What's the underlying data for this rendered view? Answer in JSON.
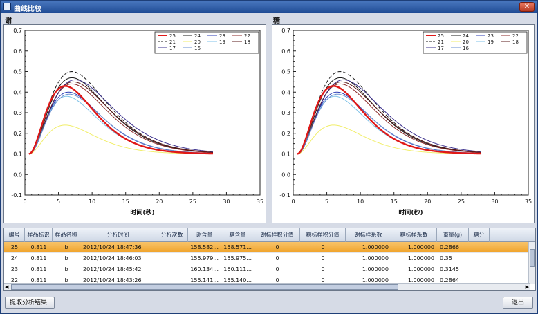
{
  "window": {
    "title": "曲线比较",
    "close_glyph": "✕"
  },
  "panels": [
    {
      "title": "谢"
    },
    {
      "title": "糖"
    }
  ],
  "chart_data": [
    {
      "type": "line",
      "title": "谢",
      "xlabel": "时间(秒)",
      "ylabel": "",
      "xlim": [
        0,
        35
      ],
      "ylim": [
        -0.1,
        0.7
      ],
      "xticks": [
        0,
        5,
        10,
        15,
        20,
        25,
        30,
        35
      ],
      "yticks": [
        -0.1,
        0.0,
        0.1,
        0.2,
        0.3,
        0.4,
        0.5,
        0.6,
        0.7
      ],
      "ytick_labels": [
        "-0.1",
        "0.0",
        "0.1",
        "0.2",
        "0.3",
        "0.4",
        "0.5",
        "0.6",
        "0.7"
      ],
      "legend_position": "top-right",
      "series": [
        {
          "name": "25",
          "color": "#e01818",
          "width": 2.4,
          "dash": "",
          "peak": 0.43,
          "tp": 6.0
        },
        {
          "name": "24",
          "color": "#1a1a1a",
          "width": 1.0,
          "dash": "",
          "peak": 0.47,
          "tp": 7.0
        },
        {
          "name": "23",
          "color": "#2b3bb5",
          "width": 1.0,
          "dash": "",
          "peak": 0.4,
          "tp": 6.5
        },
        {
          "name": "22",
          "color": "#8b2a2a",
          "width": 1.0,
          "dash": "",
          "peak": 0.44,
          "tp": 7.0
        },
        {
          "name": "21",
          "color": "#1a1a1a",
          "width": 1.0,
          "dash": "5,3",
          "peak": 0.5,
          "tp": 7.0
        },
        {
          "name": "20",
          "color": "#f1ee6a",
          "width": 1.0,
          "dash": "",
          "peak": 0.24,
          "tp": 6.0
        },
        {
          "name": "19",
          "color": "#7ec2e8",
          "width": 1.0,
          "dash": "",
          "peak": 0.38,
          "tp": 6.2
        },
        {
          "name": "18",
          "color": "#5a1818",
          "width": 1.0,
          "dash": "",
          "peak": 0.45,
          "tp": 7.2
        },
        {
          "name": "17",
          "color": "#3a2f8c",
          "width": 1.0,
          "dash": "",
          "peak": 0.46,
          "tp": 7.5
        },
        {
          "name": "16",
          "color": "#6a8fd0",
          "width": 1.0,
          "dash": "",
          "peak": 0.39,
          "tp": 6.6
        }
      ]
    },
    {
      "type": "line",
      "title": "糖",
      "xlabel": "时间(秒)",
      "ylabel": "",
      "xlim": [
        0,
        35
      ],
      "ylim": [
        -0.1,
        0.7
      ],
      "xticks": [
        0,
        5,
        10,
        15,
        20,
        25,
        30,
        35
      ],
      "yticks": [
        -0.1,
        0.0,
        0.1,
        0.2,
        0.3,
        0.4,
        0.5,
        0.6,
        0.7
      ],
      "ytick_labels": [
        "-0.1",
        "0.0",
        "0.1",
        "0.2",
        "0.3",
        "0.4",
        "0.5",
        "0.6",
        "0.7"
      ],
      "legend_position": "top-right",
      "series": [
        {
          "name": "25",
          "color": "#e01818",
          "width": 2.4,
          "dash": "",
          "peak": 0.43,
          "tp": 6.0
        },
        {
          "name": "24",
          "color": "#1a1a1a",
          "width": 1.0,
          "dash": "",
          "peak": 0.47,
          "tp": 7.0
        },
        {
          "name": "23",
          "color": "#2b3bb5",
          "width": 1.0,
          "dash": "",
          "peak": 0.4,
          "tp": 6.5
        },
        {
          "name": "22",
          "color": "#8b2a2a",
          "width": 1.0,
          "dash": "",
          "peak": 0.44,
          "tp": 7.0
        },
        {
          "name": "21",
          "color": "#1a1a1a",
          "width": 1.0,
          "dash": "5,3",
          "peak": 0.5,
          "tp": 7.0
        },
        {
          "name": "20",
          "color": "#f1ee6a",
          "width": 1.0,
          "dash": "",
          "peak": 0.24,
          "tp": 6.0
        },
        {
          "name": "19",
          "color": "#7ec2e8",
          "width": 1.0,
          "dash": "",
          "peak": 0.38,
          "tp": 6.2
        },
        {
          "name": "18",
          "color": "#5a1818",
          "width": 1.0,
          "dash": "",
          "peak": 0.45,
          "tp": 7.2
        },
        {
          "name": "17",
          "color": "#3a2f8c",
          "width": 1.0,
          "dash": "",
          "peak": 0.46,
          "tp": 7.5
        },
        {
          "name": "16",
          "color": "#6a8fd0",
          "width": 1.0,
          "dash": "",
          "peak": 0.39,
          "tp": 6.6
        }
      ]
    }
  ],
  "table": {
    "headers": [
      "编号",
      "样品标识",
      "样品名称",
      "分析时间",
      "分析次数",
      "谢含量",
      "糖含量",
      "谢标样积分值",
      "糖标样积分值",
      "谢标样系数",
      "糖标样系数",
      "重量(g)",
      "糖分"
    ],
    "rows": [
      [
        "25",
        "0.811",
        "b",
        "2012/10/24 18:47:36",
        "",
        "158.582...",
        "158.571...",
        "0",
        "0",
        "1.000000",
        "1.000000",
        "0.2866",
        ""
      ],
      [
        "24",
        "0.811",
        "b",
        "2012/10/24 18:46:03",
        "",
        "155.979...",
        "155.975...",
        "0",
        "0",
        "1.000000",
        "1.000000",
        "0.35",
        ""
      ],
      [
        "23",
        "0.811",
        "b",
        "2012/10/24 18:45:42",
        "",
        "160.134...",
        "160.111...",
        "0",
        "0",
        "1.000000",
        "1.000000",
        "0.3145",
        ""
      ],
      [
        "22",
        "0.811",
        "b",
        "2012/10/24 18:43:26",
        "",
        "155.141...",
        "155.140...",
        "0",
        "0",
        "1.000000",
        "1.000000",
        "0.2864",
        ""
      ]
    ],
    "selected_row": 0
  },
  "buttons": {
    "extract": "提取分析结果",
    "exit": "退出"
  }
}
